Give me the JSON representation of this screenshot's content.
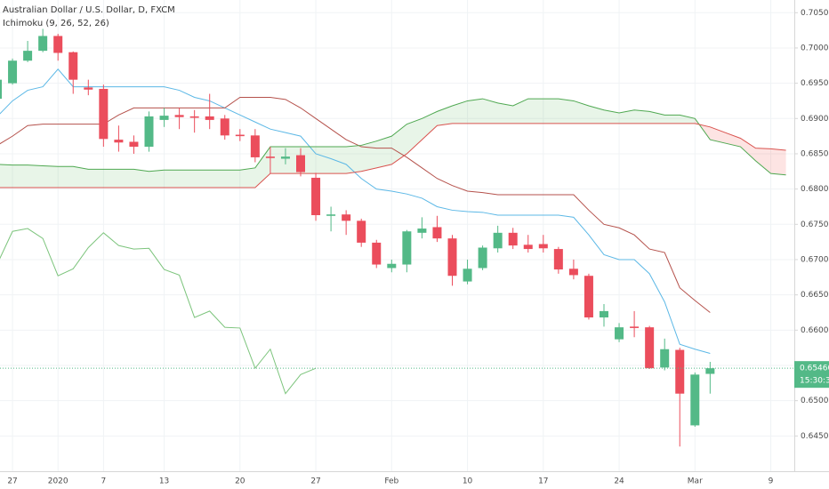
{
  "chart_data": {
    "type": "candlestick",
    "title": "Australian Dollar / U.S. Dollar, D, FXCM",
    "indicator": "Ichimoku (9, 26, 52, 26)",
    "categories": [
      null,
      "27",
      null,
      null,
      "2020",
      null,
      null,
      "7",
      null,
      null,
      null,
      "13",
      null,
      null,
      null,
      null,
      "20",
      null,
      null,
      null,
      null,
      "27",
      null,
      null,
      null,
      null,
      "Feb",
      null,
      null,
      null,
      null,
      "10",
      null,
      null,
      null,
      null,
      "17",
      null,
      null,
      null,
      null,
      "24",
      null,
      null,
      null,
      null,
      "Mar",
      null,
      null,
      null,
      null,
      "9",
      null
    ],
    "open": [
      0.6928,
      0.695,
      0.6982,
      0.6996,
      0.7017,
      0.6994,
      0.6944,
      0.6942,
      0.687,
      0.6867,
      0.686,
      0.6898,
      0.6905,
      0.6903,
      0.6903,
      0.69,
      0.6877,
      0.6876,
      0.6846,
      0.6843,
      0.6848,
      0.6816,
      0.6762,
      0.6764,
      0.6755,
      0.6724,
      0.6688,
      0.6693,
      0.6738,
      0.6746,
      0.673,
      0.6669,
      0.6688,
      0.6716,
      0.6738,
      0.6721,
      0.6722,
      0.6715,
      0.6687,
      0.6677,
      0.6618,
      0.6587,
      0.6605,
      0.6604,
      0.6547,
      0.6572,
      0.6465,
      0.6538,
      null,
      null,
      null,
      null,
      null
    ],
    "high": [
      0.6965,
      0.6985,
      0.701,
      0.7027,
      0.702,
      0.6995,
      0.6955,
      0.6948,
      0.689,
      0.6876,
      0.691,
      0.6915,
      0.6915,
      0.6912,
      0.6935,
      0.6905,
      0.6885,
      0.6885,
      0.686,
      0.6858,
      0.6858,
      0.6823,
      0.6775,
      0.677,
      0.6758,
      0.6728,
      0.67,
      0.6742,
      0.676,
      0.6762,
      0.6735,
      0.67,
      0.672,
      0.6748,
      0.6745,
      0.6735,
      0.6735,
      0.6718,
      0.67,
      0.668,
      0.6637,
      0.661,
      0.6627,
      0.6606,
      0.6588,
      0.6575,
      0.654,
      0.6555,
      null,
      null,
      null,
      null,
      null
    ],
    "low": [
      0.6925,
      0.6948,
      0.698,
      0.6994,
      0.6982,
      0.6935,
      0.6933,
      0.686,
      0.6853,
      0.685,
      0.6853,
      0.6888,
      0.6885,
      0.688,
      0.6885,
      0.687,
      0.6868,
      0.6838,
      0.6822,
      0.6835,
      0.6818,
      0.6755,
      0.674,
      0.6735,
      0.6718,
      0.6688,
      0.6682,
      0.6682,
      0.673,
      0.6725,
      0.6663,
      0.6665,
      0.6685,
      0.671,
      0.6715,
      0.671,
      0.671,
      0.668,
      0.6672,
      0.6615,
      0.6605,
      0.6583,
      0.659,
      0.6545,
      0.6543,
      0.6435,
      0.6463,
      0.651,
      null,
      null,
      null,
      null,
      null
    ],
    "close": [
      0.6955,
      0.6982,
      0.6996,
      0.7017,
      0.6993,
      0.6955,
      0.6941,
      0.6871,
      0.6866,
      0.686,
      0.6903,
      0.6904,
      0.6902,
      0.6901,
      0.6898,
      0.6876,
      0.6875,
      0.6845,
      0.6844,
      0.6846,
      0.6824,
      0.6763,
      0.6764,
      0.6755,
      0.6724,
      0.6693,
      0.6694,
      0.674,
      0.6744,
      0.673,
      0.6677,
      0.6687,
      0.6717,
      0.6738,
      0.672,
      0.6715,
      0.6716,
      0.6686,
      0.6678,
      0.6618,
      0.6627,
      0.6604,
      0.6603,
      0.6546,
      0.6573,
      0.651,
      0.6537,
      0.6546,
      null,
      null,
      null,
      null,
      null
    ],
    "up_color": "#53b987",
    "down_color": "#eb4d5c",
    "lines": [
      {
        "color": "#5cb8e6",
        "values": [
          0.6903,
          0.6925,
          0.694,
          0.6945,
          0.697,
          0.6945,
          0.6945,
          0.6945,
          0.6945,
          0.6945,
          0.6945,
          0.6945,
          0.694,
          0.693,
          0.6925,
          0.6915,
          0.6905,
          0.6895,
          0.6885,
          0.688,
          0.6875,
          0.685,
          0.6843,
          0.6835,
          0.6815,
          0.68,
          0.6797,
          0.6793,
          0.6787,
          0.6775,
          0.677,
          0.6768,
          0.6767,
          0.6763,
          0.6763,
          0.6763,
          0.6763,
          0.6763,
          0.676,
          0.6735,
          0.6707,
          0.67,
          0.67,
          0.668,
          0.664,
          0.658,
          0.6573,
          0.6567,
          null,
          null,
          null,
          null,
          null
        ]
      },
      {
        "color": "#b5524c",
        "values": [
          0.6862,
          0.6875,
          0.689,
          0.6892,
          0.6892,
          0.6892,
          0.6892,
          0.6892,
          0.6905,
          0.6915,
          0.6915,
          0.6915,
          0.6915,
          0.6915,
          0.6915,
          0.6915,
          0.693,
          0.693,
          0.693,
          0.6927,
          0.6915,
          0.69,
          0.6885,
          0.687,
          0.686,
          0.6858,
          0.6858,
          0.6845,
          0.683,
          0.6815,
          0.6805,
          0.6797,
          0.6795,
          0.6792,
          0.6792,
          0.6792,
          0.6792,
          0.6792,
          0.6792,
          0.677,
          0.675,
          0.6745,
          0.6735,
          0.6715,
          0.671,
          0.666,
          0.6642,
          0.6625,
          null,
          null,
          null,
          null,
          null
        ]
      },
      {
        "color": "#7cc47c",
        "values": [
          0.6694,
          0.674,
          0.6744,
          0.673,
          0.6677,
          0.6687,
          0.6717,
          0.6738,
          0.672,
          0.6715,
          0.6716,
          0.6686,
          0.6678,
          0.6618,
          0.6627,
          0.6604,
          0.6603,
          0.6546,
          0.6573,
          0.651,
          0.6537,
          0.6546,
          null,
          null,
          null,
          null,
          null,
          null,
          null,
          null,
          null,
          null,
          null,
          null,
          null,
          null,
          null,
          null,
          null,
          null,
          null,
          null,
          null,
          null,
          null,
          null,
          null,
          null,
          null,
          null,
          null,
          null,
          null
        ]
      },
      {
        "color": "#4fa851",
        "values": [
          0.6835,
          0.6834,
          0.6834,
          0.6833,
          0.6832,
          0.6832,
          0.6828,
          0.6828,
          0.6828,
          0.6828,
          0.6825,
          0.6827,
          0.6827,
          0.6827,
          0.6827,
          0.6827,
          0.6827,
          0.683,
          0.686,
          0.686,
          0.686,
          0.686,
          0.686,
          0.686,
          0.6862,
          0.6868,
          0.6875,
          0.6892,
          0.69,
          0.691,
          0.6918,
          0.6925,
          0.6928,
          0.6922,
          0.6918,
          0.6928,
          0.6928,
          0.6928,
          0.6925,
          0.6918,
          0.6912,
          0.6908,
          0.6912,
          0.691,
          0.6905,
          0.6905,
          0.69,
          0.687,
          0.6865,
          0.686,
          0.684,
          0.6822,
          0.682
        ]
      },
      {
        "color": "#d9534f",
        "values": [
          0.6802,
          0.6802,
          0.6802,
          0.6802,
          0.6802,
          0.6802,
          0.6802,
          0.6802,
          0.6802,
          0.6802,
          0.6802,
          0.6802,
          0.6802,
          0.6802,
          0.6802,
          0.6802,
          0.6802,
          0.6802,
          0.6822,
          0.6822,
          0.6822,
          0.6822,
          0.6822,
          0.6822,
          0.6825,
          0.683,
          0.6835,
          0.685,
          0.687,
          0.689,
          0.6893,
          0.6893,
          0.6893,
          0.6893,
          0.6893,
          0.6893,
          0.6893,
          0.6893,
          0.6893,
          0.6893,
          0.6893,
          0.6893,
          0.6893,
          0.6893,
          0.6893,
          0.6893,
          0.6893,
          0.6888,
          0.688,
          0.6872,
          0.6858,
          0.6857,
          0.6855
        ]
      }
    ],
    "cloud_colors": [
      "rgba(76,175,80,0.13)",
      "rgba(244,67,54,0.14)"
    ],
    "ylim": [
      0.64,
      0.7068
    ],
    "yticks": [
      {
        "value": 0.645,
        "label": "0.64500"
      },
      {
        "value": 0.65,
        "label": "0.65000"
      },
      {
        "value": 0.655,
        "label": "0.65500"
      },
      {
        "value": 0.66,
        "label": "0.66000"
      },
      {
        "value": 0.665,
        "label": "0.66500"
      },
      {
        "value": 0.67,
        "label": "0.67000"
      },
      {
        "value": 0.675,
        "label": "0.67500"
      },
      {
        "value": 0.68,
        "label": "0.68000"
      },
      {
        "value": 0.685,
        "label": "0.68500"
      },
      {
        "value": 0.69,
        "label": "0.69000"
      },
      {
        "value": 0.695,
        "label": "0.69500"
      },
      {
        "value": 0.7,
        "label": "0.70000"
      },
      {
        "value": 0.705,
        "label": "0.70500"
      }
    ],
    "grid": true,
    "last_price": {
      "value": 0.6546,
      "label": "0.65460"
    },
    "countdown": "15:30:35"
  }
}
